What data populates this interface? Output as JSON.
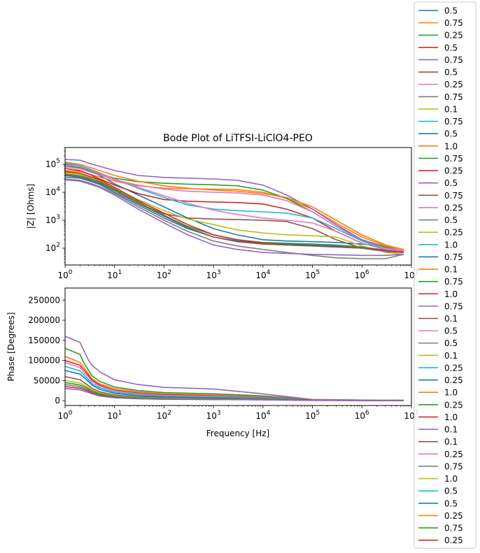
{
  "chart_data": {
    "type": "line",
    "title": "Bode Plot of LiTFSI-LiClO4-PEO",
    "palette": [
      "#1f77b4",
      "#ff7f0e",
      "#2ca02c",
      "#d62728",
      "#9467bd",
      "#8c564b",
      "#e377c2",
      "#7f7f7f",
      "#bcbd22",
      "#17becf"
    ],
    "legend": {
      "placement": "right, extending beyond the axes",
      "entries": [
        "0.5",
        "0.75",
        "0.25",
        "0.5",
        "0.75",
        "0.5",
        "0.25",
        "0.75",
        "0.1",
        "0.75",
        "0.5",
        "1.0",
        "0.75",
        "0.25",
        "0.5",
        "0.75",
        "0.25",
        "0.5",
        "0.25",
        "1.0",
        "0.75",
        "0.1",
        "0.75",
        "1.0",
        "0.75",
        "0.1",
        "0.5",
        "0.5",
        "0.1",
        "0.25",
        "0.25",
        "1.0",
        "0.25",
        "1.0",
        "0.1",
        "0.1",
        "0.25",
        "0.75",
        "1.0",
        "0.5",
        "0.5",
        "0.25",
        "0.75",
        "0.25"
      ]
    },
    "panels": [
      {
        "id": "magnitude",
        "xlabel": "",
        "ylabel": "|Z| [Ohms]",
        "xscale": "log",
        "yscale": "log",
        "xlim": [
          1,
          10000000
        ],
        "ylim": [
          25,
          400000
        ],
        "xticks": [
          {
            "v": 1,
            "label": "10^0"
          },
          {
            "v": 10,
            "label": "10^1"
          },
          {
            "v": 100,
            "label": "10^2"
          },
          {
            "v": 1000,
            "label": "10^3"
          },
          {
            "v": 10000,
            "label": "10^4"
          },
          {
            "v": 100000,
            "label": "10^5"
          },
          {
            "v": 1000000,
            "label": "10^6"
          },
          {
            "v": 10000000,
            "label": "10^7"
          }
        ],
        "yticks": [
          {
            "v": 100,
            "label": "10^2"
          },
          {
            "v": 1000,
            "label": "10^3"
          },
          {
            "v": 10000,
            "label": "10^4"
          },
          {
            "v": 100000,
            "label": "10^5"
          }
        ],
        "x": [
          1,
          2,
          3,
          5,
          10,
          30,
          100,
          300,
          1000,
          3000,
          10000,
          30000,
          100000,
          300000,
          1000000,
          3000000,
          7000000
        ],
        "series": [
          {
            "color": "#1f77b4",
            "values": [
              100000,
              80000,
              60000,
              40000,
              20000,
              8000,
              3000,
              1200,
              500,
              300,
              200,
              180,
              170,
              160,
              140,
              110,
              80
            ]
          },
          {
            "color": "#ff7f0e",
            "values": [
              60000,
              55000,
              45000,
              35000,
              25000,
              17000,
              14000,
              13500,
              13000,
              12500,
              10000,
              6000,
              2500,
              800,
              250,
              120,
              80
            ]
          },
          {
            "color": "#2ca02c",
            "values": [
              90000,
              75000,
              60000,
              45000,
              32000,
              24000,
              21000,
              19500,
              18500,
              17000,
              12000,
              6000,
              2000,
              600,
              200,
              110,
              80
            ]
          },
          {
            "color": "#d62728",
            "values": [
              70000,
              60000,
              45000,
              30000,
              18000,
              9000,
              5500,
              4800,
              4500,
              4300,
              3800,
              2500,
              1200,
              400,
              150,
              90,
              75
            ]
          },
          {
            "color": "#9467bd",
            "values": [
              150000,
              140000,
              110000,
              85000,
              60000,
              40000,
              34000,
              32000,
              30000,
              27000,
              18000,
              8000,
              2500,
              700,
              200,
              100,
              80
            ]
          },
          {
            "color": "#8c564b",
            "values": [
              40000,
              35000,
              28000,
              22000,
              12000,
              4000,
              1700,
              1200,
              1100,
              1050,
              1000,
              900,
              500,
              200,
              100,
              75,
              70
            ]
          },
          {
            "color": "#e377c2",
            "values": [
              80000,
              70000,
              55000,
              42000,
              28000,
              18000,
              13000,
              11000,
              10000,
              9500,
              8000,
              5000,
              2000,
              600,
              180,
              100,
              85
            ]
          },
          {
            "color": "#7f7f7f",
            "values": [
              30000,
              27000,
              22000,
              16000,
              9000,
              3000,
              1000,
              400,
              180,
              120,
              90,
              70,
              55,
              45,
              42,
              42,
              60
            ]
          },
          {
            "color": "#bcbd22",
            "values": [
              50000,
              45000,
              35000,
              25000,
              14000,
              5500,
              2200,
              1100,
              700,
              450,
              350,
              300,
              280,
              250,
              120,
              70,
              60
            ]
          },
          {
            "color": "#17becf",
            "values": [
              110000,
              90000,
              70000,
              50000,
              30000,
              14000,
              6500,
              3500,
              2500,
              2200,
              2000,
              1800,
              1200,
              500,
              180,
              90,
              75
            ]
          },
          {
            "color": "#1f77b4",
            "values": [
              35000,
              32000,
              26000,
              19000,
              10000,
              3500,
              1200,
              500,
              250,
              180,
              150,
              140,
              130,
              120,
              100,
              80,
              70
            ]
          },
          {
            "color": "#ff7f0e",
            "values": [
              120000,
              100000,
              80000,
              60000,
              40000,
              25000,
              17000,
              14000,
              12000,
              11000,
              9000,
              6500,
              3000,
              1000,
              300,
              130,
              90
            ]
          },
          {
            "color": "#2ca02c",
            "values": [
              45000,
              40000,
              32000,
              24000,
              13000,
              4500,
              1500,
              600,
              300,
              200,
              160,
              150,
              140,
              130,
              110,
              85,
              75
            ]
          },
          {
            "color": "#d62728",
            "values": [
              55000,
              48000,
              38000,
              28000,
              15000,
              5000,
              1800,
              700,
              300,
              200,
              150,
              130,
              120,
              110,
              100,
              85,
              75
            ]
          },
          {
            "color": "#9467bd",
            "values": [
              28000,
              25000,
              20000,
              15000,
              8000,
              2500,
              800,
              300,
              130,
              90,
              70,
              65,
              60,
              58,
              55,
              55,
              60
            ]
          },
          {
            "color": "#8c564b",
            "values": [
              42000,
              36000,
              29000,
              21000,
              11500,
              4000,
              1400,
              550,
              250,
              170,
              140,
              130,
              120,
              110,
              100,
              80,
              70
            ]
          },
          {
            "color": "#e377c2",
            "values": [
              95000,
              82000,
              65000,
              48000,
              30000,
              15000,
              7500,
              4000,
              2300,
              1600,
              1200,
              1000,
              800,
              400,
              150,
              90,
              80
            ]
          }
        ]
      },
      {
        "id": "phase",
        "xlabel": "Frequency [Hz]",
        "ylabel": "Phase [Degrees]",
        "xscale": "log",
        "yscale": "linear",
        "xlim": [
          1,
          10000000
        ],
        "ylim": [
          -12000,
          280000
        ],
        "xticks": [
          {
            "v": 1,
            "label": "10^0"
          },
          {
            "v": 10,
            "label": "10^1"
          },
          {
            "v": 100,
            "label": "10^2"
          },
          {
            "v": 1000,
            "label": "10^3"
          },
          {
            "v": 10000,
            "label": "10^4"
          },
          {
            "v": 100000,
            "label": "10^5"
          },
          {
            "v": 1000000,
            "label": "10^6"
          },
          {
            "v": 10000000,
            "label": "10^7"
          }
        ],
        "yticks": [
          {
            "v": 0,
            "label": "0"
          },
          {
            "v": 50000,
            "label": "50000"
          },
          {
            "v": 100000,
            "label": "100000"
          },
          {
            "v": 150000,
            "label": "150000"
          },
          {
            "v": 200000,
            "label": "200000"
          },
          {
            "v": 250000,
            "label": "250000"
          }
        ],
        "x": [
          1,
          2,
          2.5,
          3,
          3.5,
          5,
          10,
          30,
          100,
          1000,
          10000,
          100000,
          1000000,
          7000000
        ],
        "series": [
          {
            "color": "#9467bd",
            "values": [
              160000,
              145000,
              120000,
              100000,
              88000,
              72000,
              52000,
              40000,
              33000,
              29000,
              17000,
              3000,
              1500,
              1000
            ]
          },
          {
            "color": "#2ca02c",
            "values": [
              130000,
              115000,
              90000,
              75000,
              62000,
              48000,
              34000,
              25000,
              20000,
              17000,
              12000,
              2500,
              1200,
              800
            ]
          },
          {
            "color": "#ff7f0e",
            "values": [
              110000,
              95000,
              80000,
              66000,
              55000,
              42000,
              30000,
              22000,
              17000,
              14000,
              10000,
              2200,
              1100,
              700
            ]
          },
          {
            "color": "#d62728",
            "values": [
              100000,
              88000,
              74000,
              62000,
              51000,
              39000,
              26000,
              19000,
              15000,
              12000,
              9000,
              2000,
              1000,
              600
            ]
          },
          {
            "color": "#e377c2",
            "values": [
              95000,
              82000,
              68000,
              58000,
              48000,
              36000,
              24000,
              17000,
              13000,
              11000,
              8000,
              1800,
              900,
              600
            ]
          },
          {
            "color": "#17becf",
            "values": [
              85000,
              74000,
              62000,
              52000,
              43000,
              32000,
              21000,
              15000,
              11000,
              9000,
              7000,
              1500,
              800,
              500
            ]
          },
          {
            "color": "#1f77b4",
            "values": [
              75000,
              66000,
              56000,
              47000,
              39000,
              28000,
              18000,
              12000,
              9000,
              7000,
              5500,
              1300,
              700,
              500
            ]
          },
          {
            "color": "#8c564b",
            "values": [
              60000,
              52000,
              44000,
              37000,
              31000,
              22000,
              14000,
              9000,
              7000,
              5500,
              4000,
              1100,
              600,
              400
            ]
          },
          {
            "color": "#bcbd22",
            "values": [
              50000,
              44000,
              38000,
              32000,
              27000,
              19000,
              12000,
              8000,
              6000,
              4500,
              3500,
              1000,
              500,
              400
            ]
          },
          {
            "color": "#7f7f7f",
            "values": [
              40000,
              35000,
              30000,
              26000,
              22000,
              15000,
              9000,
              6000,
              4500,
              3500,
              2500,
              800,
              400,
              300
            ]
          },
          {
            "color": "#2ca02c",
            "values": [
              45000,
              39000,
              34000,
              29000,
              24000,
              17000,
              10500,
              7000,
              5000,
              4000,
              3000,
              900,
              450,
              350
            ]
          },
          {
            "color": "#d62728",
            "values": [
              35000,
              31000,
              27000,
              23000,
              19000,
              13000,
              8000,
              5000,
              3800,
              3000,
              2200,
              700,
              350,
              300
            ]
          },
          {
            "color": "#9467bd",
            "values": [
              30000,
              27000,
              23000,
              20000,
              17000,
              11500,
              7000,
              4500,
              3300,
              2600,
              1900,
              600,
              300,
              250
            ]
          }
        ]
      }
    ]
  }
}
